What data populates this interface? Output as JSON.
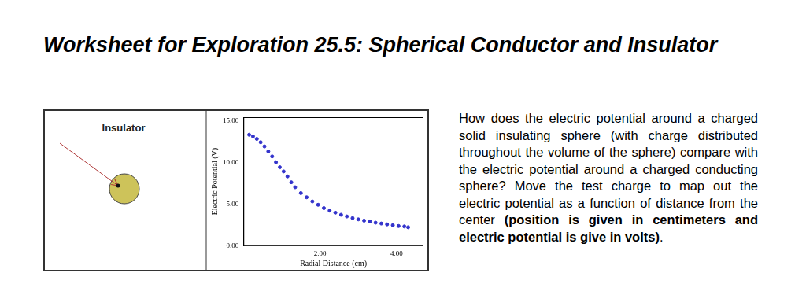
{
  "header": {
    "title": "Worksheet for Exploration 25.5: Spherical Conductor and Insulator"
  },
  "diagram": {
    "label": "Insulator"
  },
  "chart_data": {
    "type": "scatter",
    "x_label": "Radial Distance (cm)",
    "y_label": "Electric Potential (V)",
    "x": [
      0.15,
      0.25,
      0.35,
      0.45,
      0.55,
      0.65,
      0.75,
      0.85,
      0.95,
      1.05,
      1.15,
      1.25,
      1.35,
      1.5,
      1.65,
      1.8,
      1.95,
      2.1,
      2.25,
      2.4,
      2.55,
      2.7,
      2.85,
      3.0,
      3.15,
      3.3,
      3.45,
      3.6,
      3.75,
      3.9,
      4.05,
      4.2,
      4.3
    ],
    "values": [
      13.3,
      13.1,
      12.8,
      12.4,
      11.9,
      11.3,
      10.7,
      10.0,
      9.4,
      8.9,
      8.3,
      7.6,
      7.0,
      6.3,
      5.8,
      5.3,
      4.9,
      4.5,
      4.2,
      3.95,
      3.7,
      3.5,
      3.3,
      3.15,
      3.0,
      2.9,
      2.75,
      2.65,
      2.55,
      2.45,
      2.35,
      2.3,
      2.2
    ],
    "color": "#3333cc",
    "marker": "circle",
    "grid": false,
    "xlim": [
      0,
      4.7
    ],
    "xticks": [
      {
        "value": 2,
        "label": "2.00"
      },
      {
        "value": 4,
        "label": "4.00"
      }
    ],
    "ylim": [
      0,
      15.4
    ],
    "yticks": [
      {
        "value": 0,
        "label": "0.00"
      },
      {
        "value": 5,
        "label": "5.00"
      },
      {
        "value": 10,
        "label": "10.00"
      },
      {
        "value": 15,
        "label": "15.00"
      }
    ]
  },
  "text": {
    "paragraph": "How does the electric potential around a charged solid insulating sphere (with charge distributed throughout the volume of the sphere) compare with the electric potential around a charged conducting sphere? Move the test charge to map out the electric potential as a function of distance from the center",
    "bold": "(position is given in centimeters and electric potential is give in volts)",
    "end": "."
  }
}
